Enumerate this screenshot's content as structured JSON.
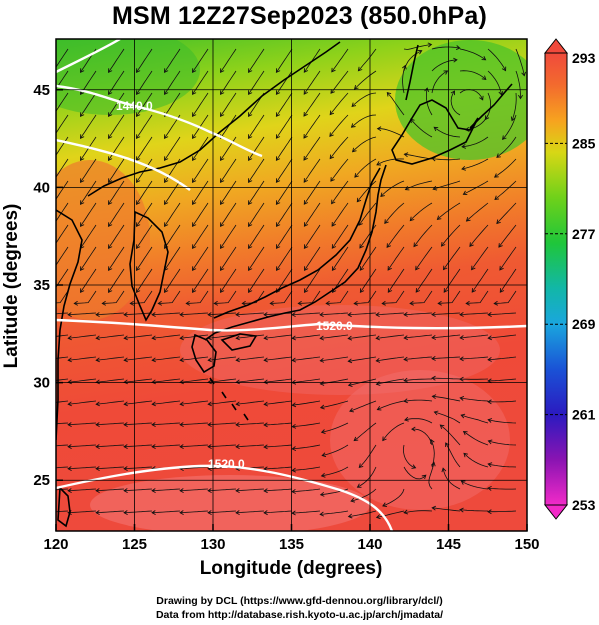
{
  "figure": {
    "title": "MSM 12Z27Sep2023 (850.0hPa)",
    "xlabel": "Longitude (degrees)",
    "ylabel": "Latitude  (degrees)",
    "credit_line1": "Drawing by DCL (https://www.gfd-dennou.org/library/dcl/)",
    "credit_line2": "Data from http://database.rish.kyoto-u.ac.jp/arch/jmadata/"
  },
  "map": {
    "lon_range": [
      120,
      150
    ],
    "lat_range": [
      22.4,
      47.6
    ],
    "lon_ticks": [
      "120",
      "125",
      "130",
      "135",
      "140",
      "145",
      "150"
    ],
    "lat_ticks": [
      "25",
      "30",
      "35",
      "40",
      "45"
    ],
    "gridlines": true,
    "contour_labels": [
      "1440.0",
      "1520.0",
      "1520.0"
    ]
  },
  "colorbar": {
    "ticks": [
      "293",
      "285",
      "277",
      "269",
      "261",
      "253"
    ],
    "range": [
      253,
      293
    ],
    "colors_top_to_bottom": [
      "#f04a3c",
      "#f36a2e",
      "#f7a31f",
      "#cfd713",
      "#6fd11a",
      "#1fc63a",
      "#12b7a7",
      "#1aa6de",
      "#1a52d6",
      "#2b1ac0",
      "#8a14b2",
      "#d60ea8",
      "#f22ac8"
    ]
  }
}
